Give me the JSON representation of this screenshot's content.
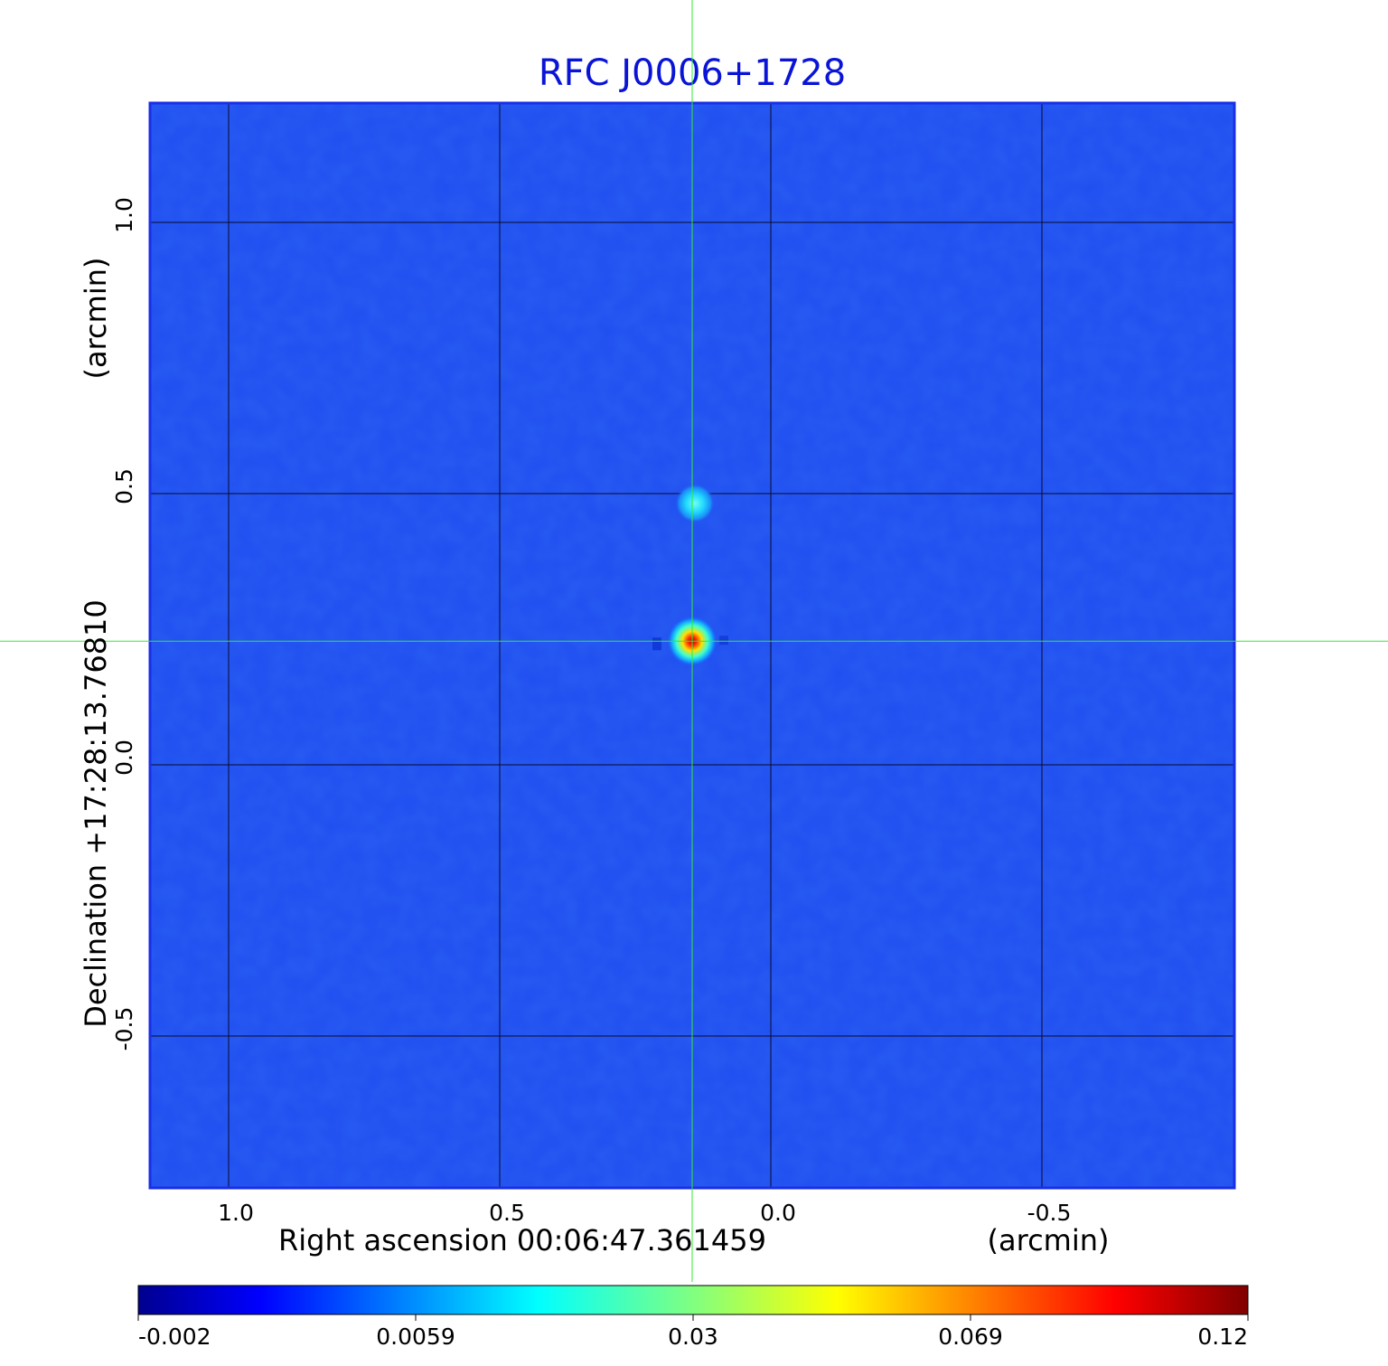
{
  "chart_data": {
    "type": "heatmap",
    "title": "RFC J0006+1728",
    "xlabel": "Right ascension  00:06:47.361459",
    "xunit": "(arcmin)",
    "ylabel": "Declination  +17:28:13.76810",
    "yunit": "(arcmin)",
    "xlim": [
      1.145,
      -0.855
    ],
    "ylim": [
      -0.78,
      1.22
    ],
    "x_ticks": [
      1.0,
      0.5,
      0.0,
      -0.5
    ],
    "x_tick_labels": [
      "1.0",
      "0.5",
      "0.0",
      "-0.5"
    ],
    "y_ticks": [
      1.0,
      0.5,
      0.0,
      -0.5
    ],
    "y_tick_labels": [
      "1.0",
      "0.5",
      "0.0",
      "-0.5"
    ],
    "grid": true,
    "crosshair": {
      "x": 0.145,
      "y": 0.228
    },
    "sources": [
      {
        "x": 0.145,
        "y": 0.228,
        "peak": 0.12
      },
      {
        "x": 0.14,
        "y": 0.482,
        "peak": 0.018
      }
    ],
    "colorbar": {
      "colormap": "jet",
      "min": -0.002,
      "max": 0.12,
      "tick_labels": [
        "-0.002",
        "0.0059",
        "0.03",
        "0.069",
        "0.12"
      ]
    },
    "colors": {
      "title": "#0a14d6",
      "background_pixel": "#1f4ff0",
      "crosshair": "#35e835",
      "grid": "#0a0a2a",
      "frame": "#1a2ee6"
    }
  }
}
